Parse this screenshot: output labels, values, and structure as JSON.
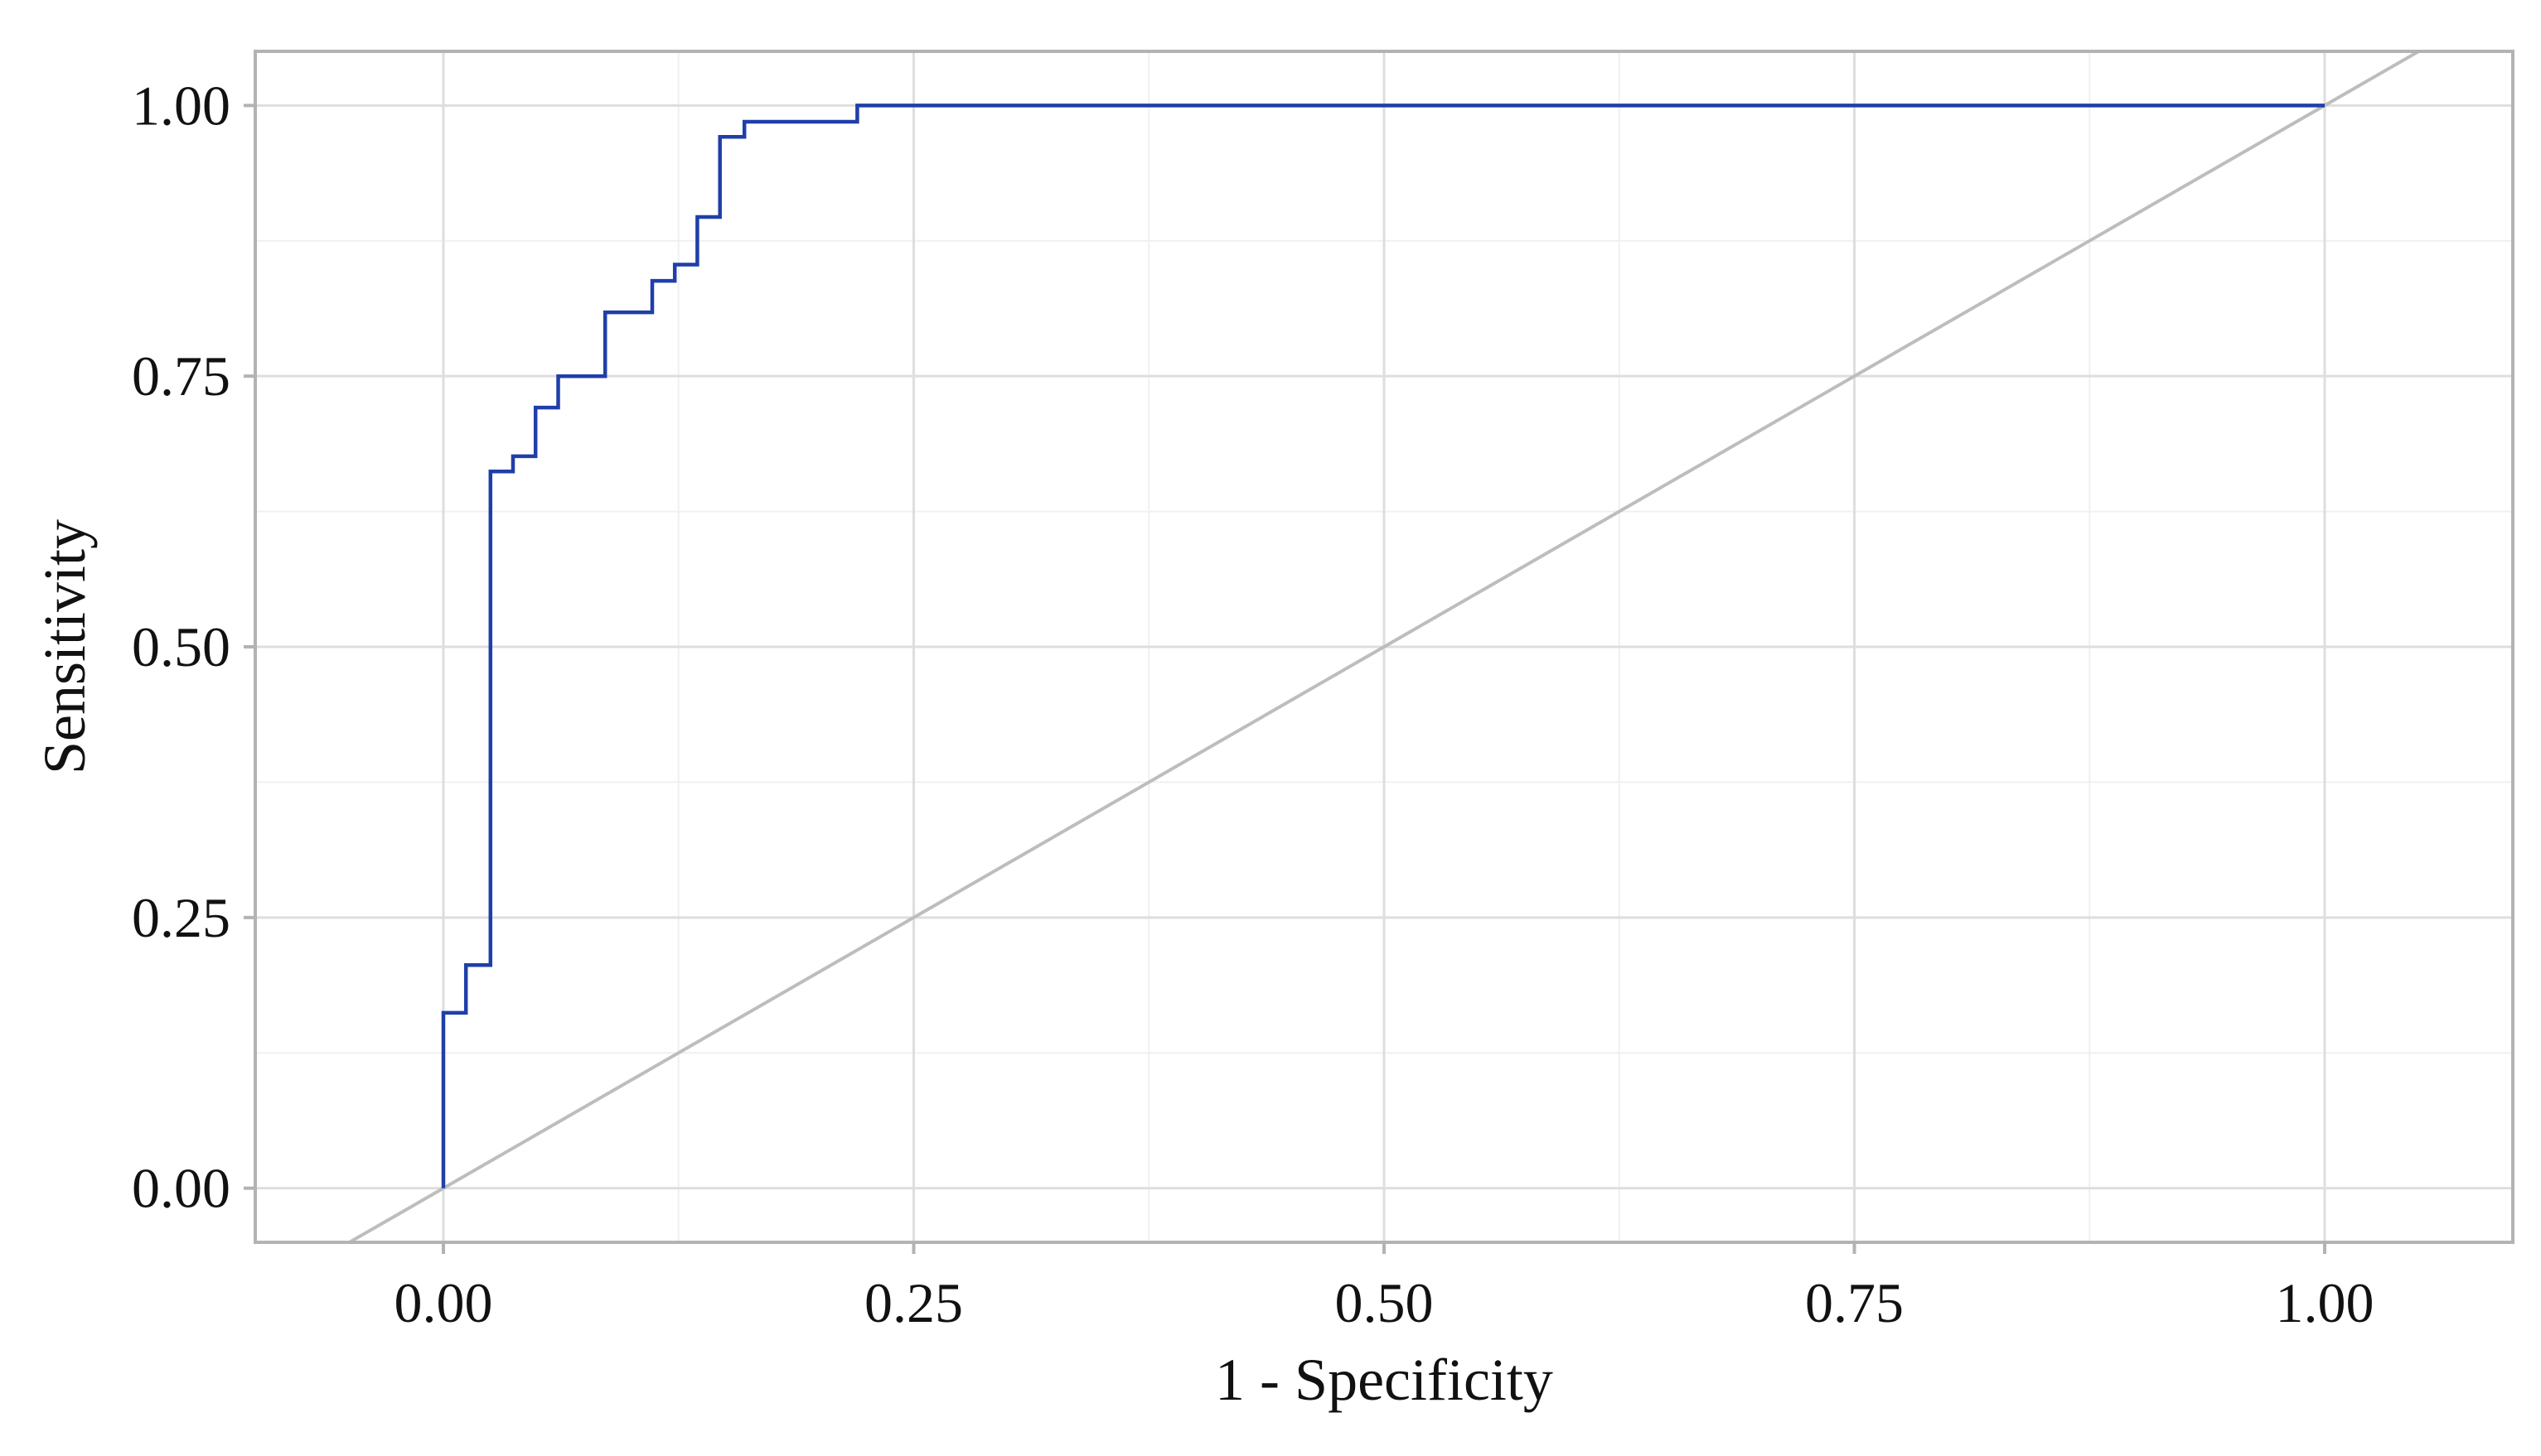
{
  "chart_data": {
    "type": "line",
    "title": "",
    "xlabel": "1 - Specificity",
    "ylabel": "Sensitivity",
    "xlim": [
      -0.1,
      1.1
    ],
    "ylim": [
      -0.05,
      1.05
    ],
    "x_ticks": [
      0,
      0.25,
      0.5,
      0.75,
      1.0
    ],
    "y_ticks": [
      0,
      0.25,
      0.5,
      0.75,
      1.0
    ],
    "x_tick_labels": [
      "0.00",
      "0.25",
      "0.50",
      "0.75",
      "1.00"
    ],
    "y_tick_labels": [
      "0.00",
      "0.25",
      "0.50",
      "0.75",
      "1.00"
    ],
    "grid": true,
    "legend": "none",
    "series": [
      {
        "color": "#1f3fa8",
        "step": true,
        "points": [
          [
            0.0,
            0.0
          ],
          [
            0.0,
            0.162
          ],
          [
            0.012,
            0.162
          ],
          [
            0.012,
            0.206
          ],
          [
            0.025,
            0.206
          ],
          [
            0.025,
            0.662
          ],
          [
            0.037,
            0.662
          ],
          [
            0.037,
            0.676
          ],
          [
            0.049,
            0.676
          ],
          [
            0.049,
            0.721
          ],
          [
            0.061,
            0.721
          ],
          [
            0.061,
            0.75
          ],
          [
            0.086,
            0.75
          ],
          [
            0.086,
            0.809
          ],
          [
            0.111,
            0.809
          ],
          [
            0.111,
            0.838
          ],
          [
            0.123,
            0.838
          ],
          [
            0.123,
            0.853
          ],
          [
            0.135,
            0.853
          ],
          [
            0.135,
            0.897
          ],
          [
            0.147,
            0.897
          ],
          [
            0.147,
            0.971
          ],
          [
            0.16,
            0.971
          ],
          [
            0.16,
            0.985
          ],
          [
            0.22,
            0.985
          ],
          [
            0.22,
            1.0
          ],
          [
            1.0,
            1.0
          ]
        ]
      },
      {
        "color": "#bdbdbd",
        "step": false,
        "reference_line": "diagonal",
        "points": [
          [
            -0.1,
            -0.1
          ],
          [
            1.1,
            1.1
          ]
        ]
      }
    ]
  }
}
